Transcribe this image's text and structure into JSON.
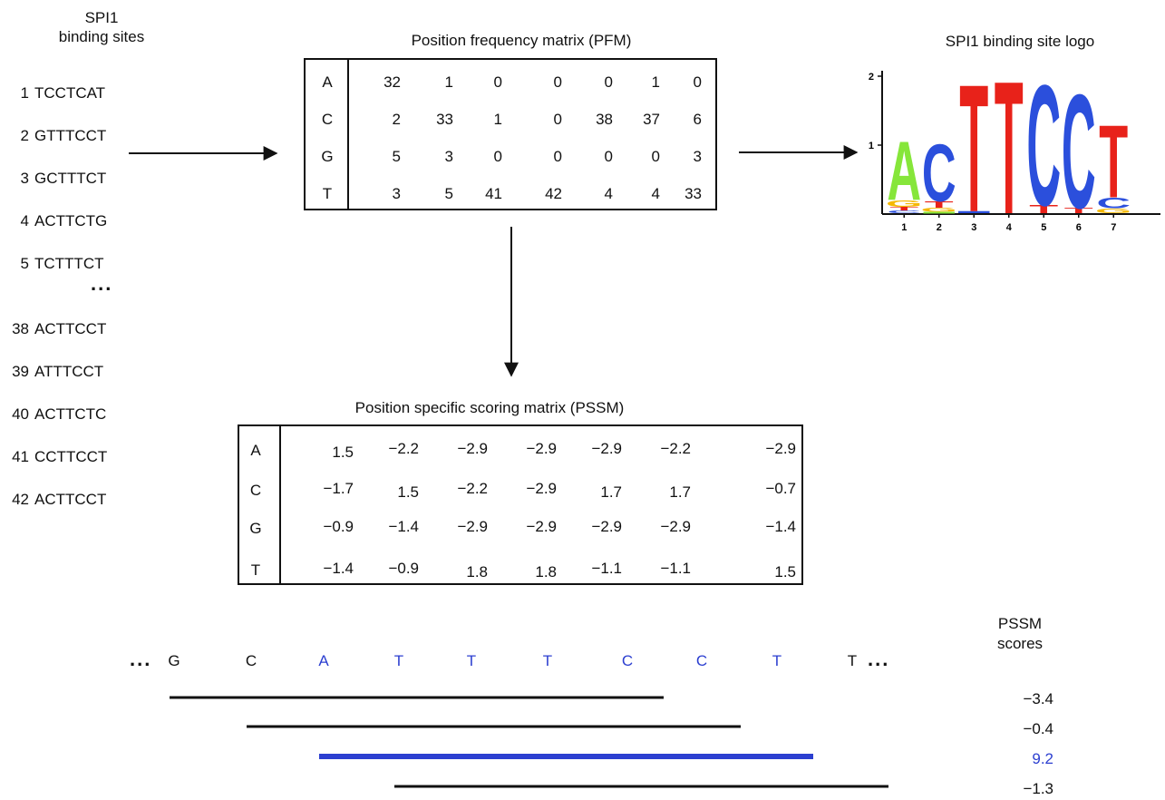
{
  "sites": {
    "title_line1": "SPI1",
    "title_line2": "binding sites",
    "items": [
      {
        "num": "1",
        "seq": "TCCTCAT"
      },
      {
        "num": "2",
        "seq": "GTTTCCT"
      },
      {
        "num": "3",
        "seq": "GCTTTCT"
      },
      {
        "num": "4",
        "seq": "ACTTCTG"
      },
      {
        "num": "5",
        "seq": "TCTTTCT"
      },
      {
        "num": "38",
        "seq": "ACTTCCT"
      },
      {
        "num": "39",
        "seq": "ATTTCCT"
      },
      {
        "num": "40",
        "seq": "ACTTCTC"
      },
      {
        "num": "41",
        "seq": "CCTTCCT"
      },
      {
        "num": "42",
        "seq": "ACTTCCT"
      }
    ],
    "ellipsis": "..."
  },
  "pfm": {
    "title": "Position frequency matrix (PFM)",
    "rows": [
      {
        "base": "A",
        "values": [
          "32",
          "1",
          "0",
          "0",
          "0",
          "1",
          "0"
        ]
      },
      {
        "base": "C",
        "values": [
          "2",
          "33",
          "1",
          "0",
          "38",
          "37",
          "6"
        ]
      },
      {
        "base": "G",
        "values": [
          "5",
          "3",
          "0",
          "0",
          "0",
          "0",
          "3"
        ]
      },
      {
        "base": "T",
        "values": [
          "3",
          "5",
          "41",
          "42",
          "4",
          "4",
          "33"
        ]
      }
    ]
  },
  "logo": {
    "title": "SPI1 binding site logo",
    "y_ticks": [
      "2",
      "1"
    ],
    "x_ticks": [
      "1",
      "2",
      "3",
      "4",
      "5",
      "6",
      "7"
    ],
    "letters": [
      "A",
      "C",
      "T",
      "T",
      "C",
      "C",
      "T"
    ],
    "colors": {
      "A": "#86e63a",
      "C": "#2b4fdc",
      "G": "#f5b800",
      "T": "#e8221a"
    }
  },
  "pssm": {
    "title": "Position specific scoring matrix (PSSM)",
    "rows": [
      {
        "base": "A",
        "values": [
          "1.5",
          "−2.2",
          "−2.9",
          "−2.9",
          "−2.9",
          "−2.2",
          "−2.9"
        ]
      },
      {
        "base": "C",
        "values": [
          "−1.7",
          "1.5",
          "−2.2",
          "−2.9",
          "1.7",
          "1.7",
          "−0.7"
        ]
      },
      {
        "base": "G",
        "values": [
          "−0.9",
          "−1.4",
          "−2.9",
          "−2.9",
          "−2.9",
          "−2.9",
          "−1.4"
        ]
      },
      {
        "base": "T",
        "values": [
          "−1.4",
          "−0.9",
          "1.8",
          "1.8",
          "−1.1",
          "−1.1",
          "1.5"
        ]
      }
    ]
  },
  "sequence": {
    "lead": "...",
    "trail": "...",
    "bases": [
      {
        "b": "G",
        "hl": false
      },
      {
        "b": "C",
        "hl": false
      },
      {
        "b": "A",
        "hl": true
      },
      {
        "b": "T",
        "hl": true
      },
      {
        "b": "T",
        "hl": true
      },
      {
        "b": "T",
        "hl": true
      },
      {
        "b": "C",
        "hl": true
      },
      {
        "b": "C",
        "hl": true
      },
      {
        "b": "T",
        "hl": true
      },
      {
        "b": "T",
        "hl": false
      }
    ],
    "highlight_color": "#2c3fd0"
  },
  "scores": {
    "title_line1": "PSSM",
    "title_line2": "scores",
    "windows": [
      {
        "value": "−3.4",
        "start": 1,
        "hl": false
      },
      {
        "value": "−0.4",
        "start": 2,
        "hl": false
      },
      {
        "value": "9.2",
        "start": 3,
        "hl": true
      },
      {
        "value": "−1.3",
        "start": 4,
        "hl": false
      }
    ]
  }
}
